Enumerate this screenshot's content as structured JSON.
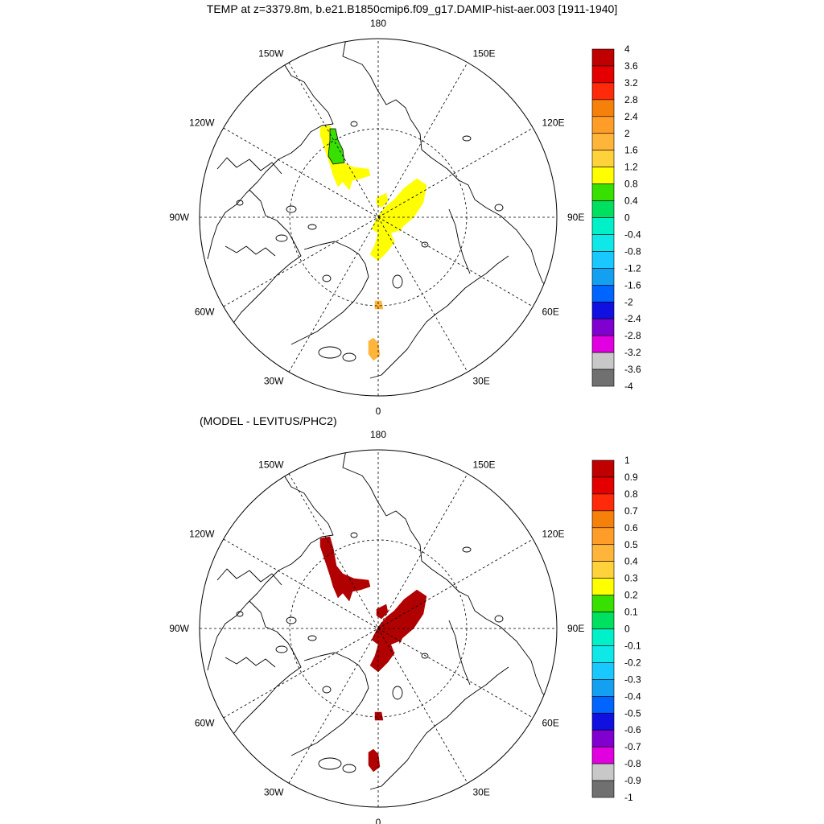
{
  "figure": {
    "title": "TEMP at z=3379.8m, b.e21.B1850cmip6.f09_g17.DAMIP-hist-aer.003 [1911-1940]",
    "subtitle": "(MODEL - LEVITUS/PHC2)"
  },
  "map": {
    "projection": "north-polar-stereographic",
    "longitude_labels": [
      "180",
      "150E",
      "120E",
      "90E",
      "60E",
      "30E",
      "0",
      "30W",
      "60W",
      "90W",
      "120W",
      "150W"
    ]
  },
  "panels": [
    {
      "id": "model",
      "colorbar": {
        "labels": [
          "4",
          "3.6",
          "3.2",
          "2.8",
          "2.4",
          "2",
          "1.6",
          "1.2",
          "0.8",
          "0.4",
          "0",
          "-0.4",
          "-0.8",
          "-1.2",
          "-1.6",
          "-2",
          "-2.4",
          "-2.8",
          "-3.2",
          "-3.6",
          "-4"
        ],
        "colors": [
          "#c00000",
          "#e50000",
          "#ff2a0a",
          "#f5800a",
          "#ff9d28",
          "#ffb43a",
          "#ffd23c",
          "#ffff00",
          "#38e000",
          "#00e060",
          "#00f0c8",
          "#10e8e8",
          "#18c8ff",
          "#14a0f0",
          "#0064ff",
          "#1010e0",
          "#8000d0",
          "#e000e0",
          "#c8c8c8",
          "#707070"
        ]
      },
      "anomaly_regions": [
        {
          "name": "canada-basin",
          "color": "#ffff00"
        },
        {
          "name": "canada-basin-core",
          "color": "#38e000"
        },
        {
          "name": "eurasian-basin",
          "color": "#ffff00"
        },
        {
          "name": "greenland-sea-north",
          "color": "#ffb43a"
        },
        {
          "name": "greenland-sea-south",
          "color": "#ffb43a"
        }
      ]
    },
    {
      "id": "difference",
      "colorbar": {
        "labels": [
          "1",
          "0.9",
          "0.8",
          "0.7",
          "0.6",
          "0.5",
          "0.4",
          "0.3",
          "0.2",
          "0.1",
          "0",
          "-0.1",
          "-0.2",
          "-0.3",
          "-0.4",
          "-0.5",
          "-0.6",
          "-0.7",
          "-0.8",
          "-0.9",
          "-1"
        ],
        "colors": [
          "#c00000",
          "#e50000",
          "#ff2a0a",
          "#f5800a",
          "#ff9d28",
          "#ffb43a",
          "#ffd23c",
          "#ffff00",
          "#38e000",
          "#00e060",
          "#00f0c8",
          "#10e8e8",
          "#18c8ff",
          "#14a0f0",
          "#0064ff",
          "#1010e0",
          "#8000d0",
          "#e000e0",
          "#c8c8c8",
          "#707070"
        ]
      },
      "anomaly_regions": [
        {
          "name": "canada-basin",
          "color": "#b00000"
        },
        {
          "name": "eurasian-basin",
          "color": "#b00000"
        },
        {
          "name": "greenland-sea-north",
          "color": "#b00000"
        },
        {
          "name": "greenland-sea-south",
          "color": "#b00000"
        }
      ]
    }
  ]
}
